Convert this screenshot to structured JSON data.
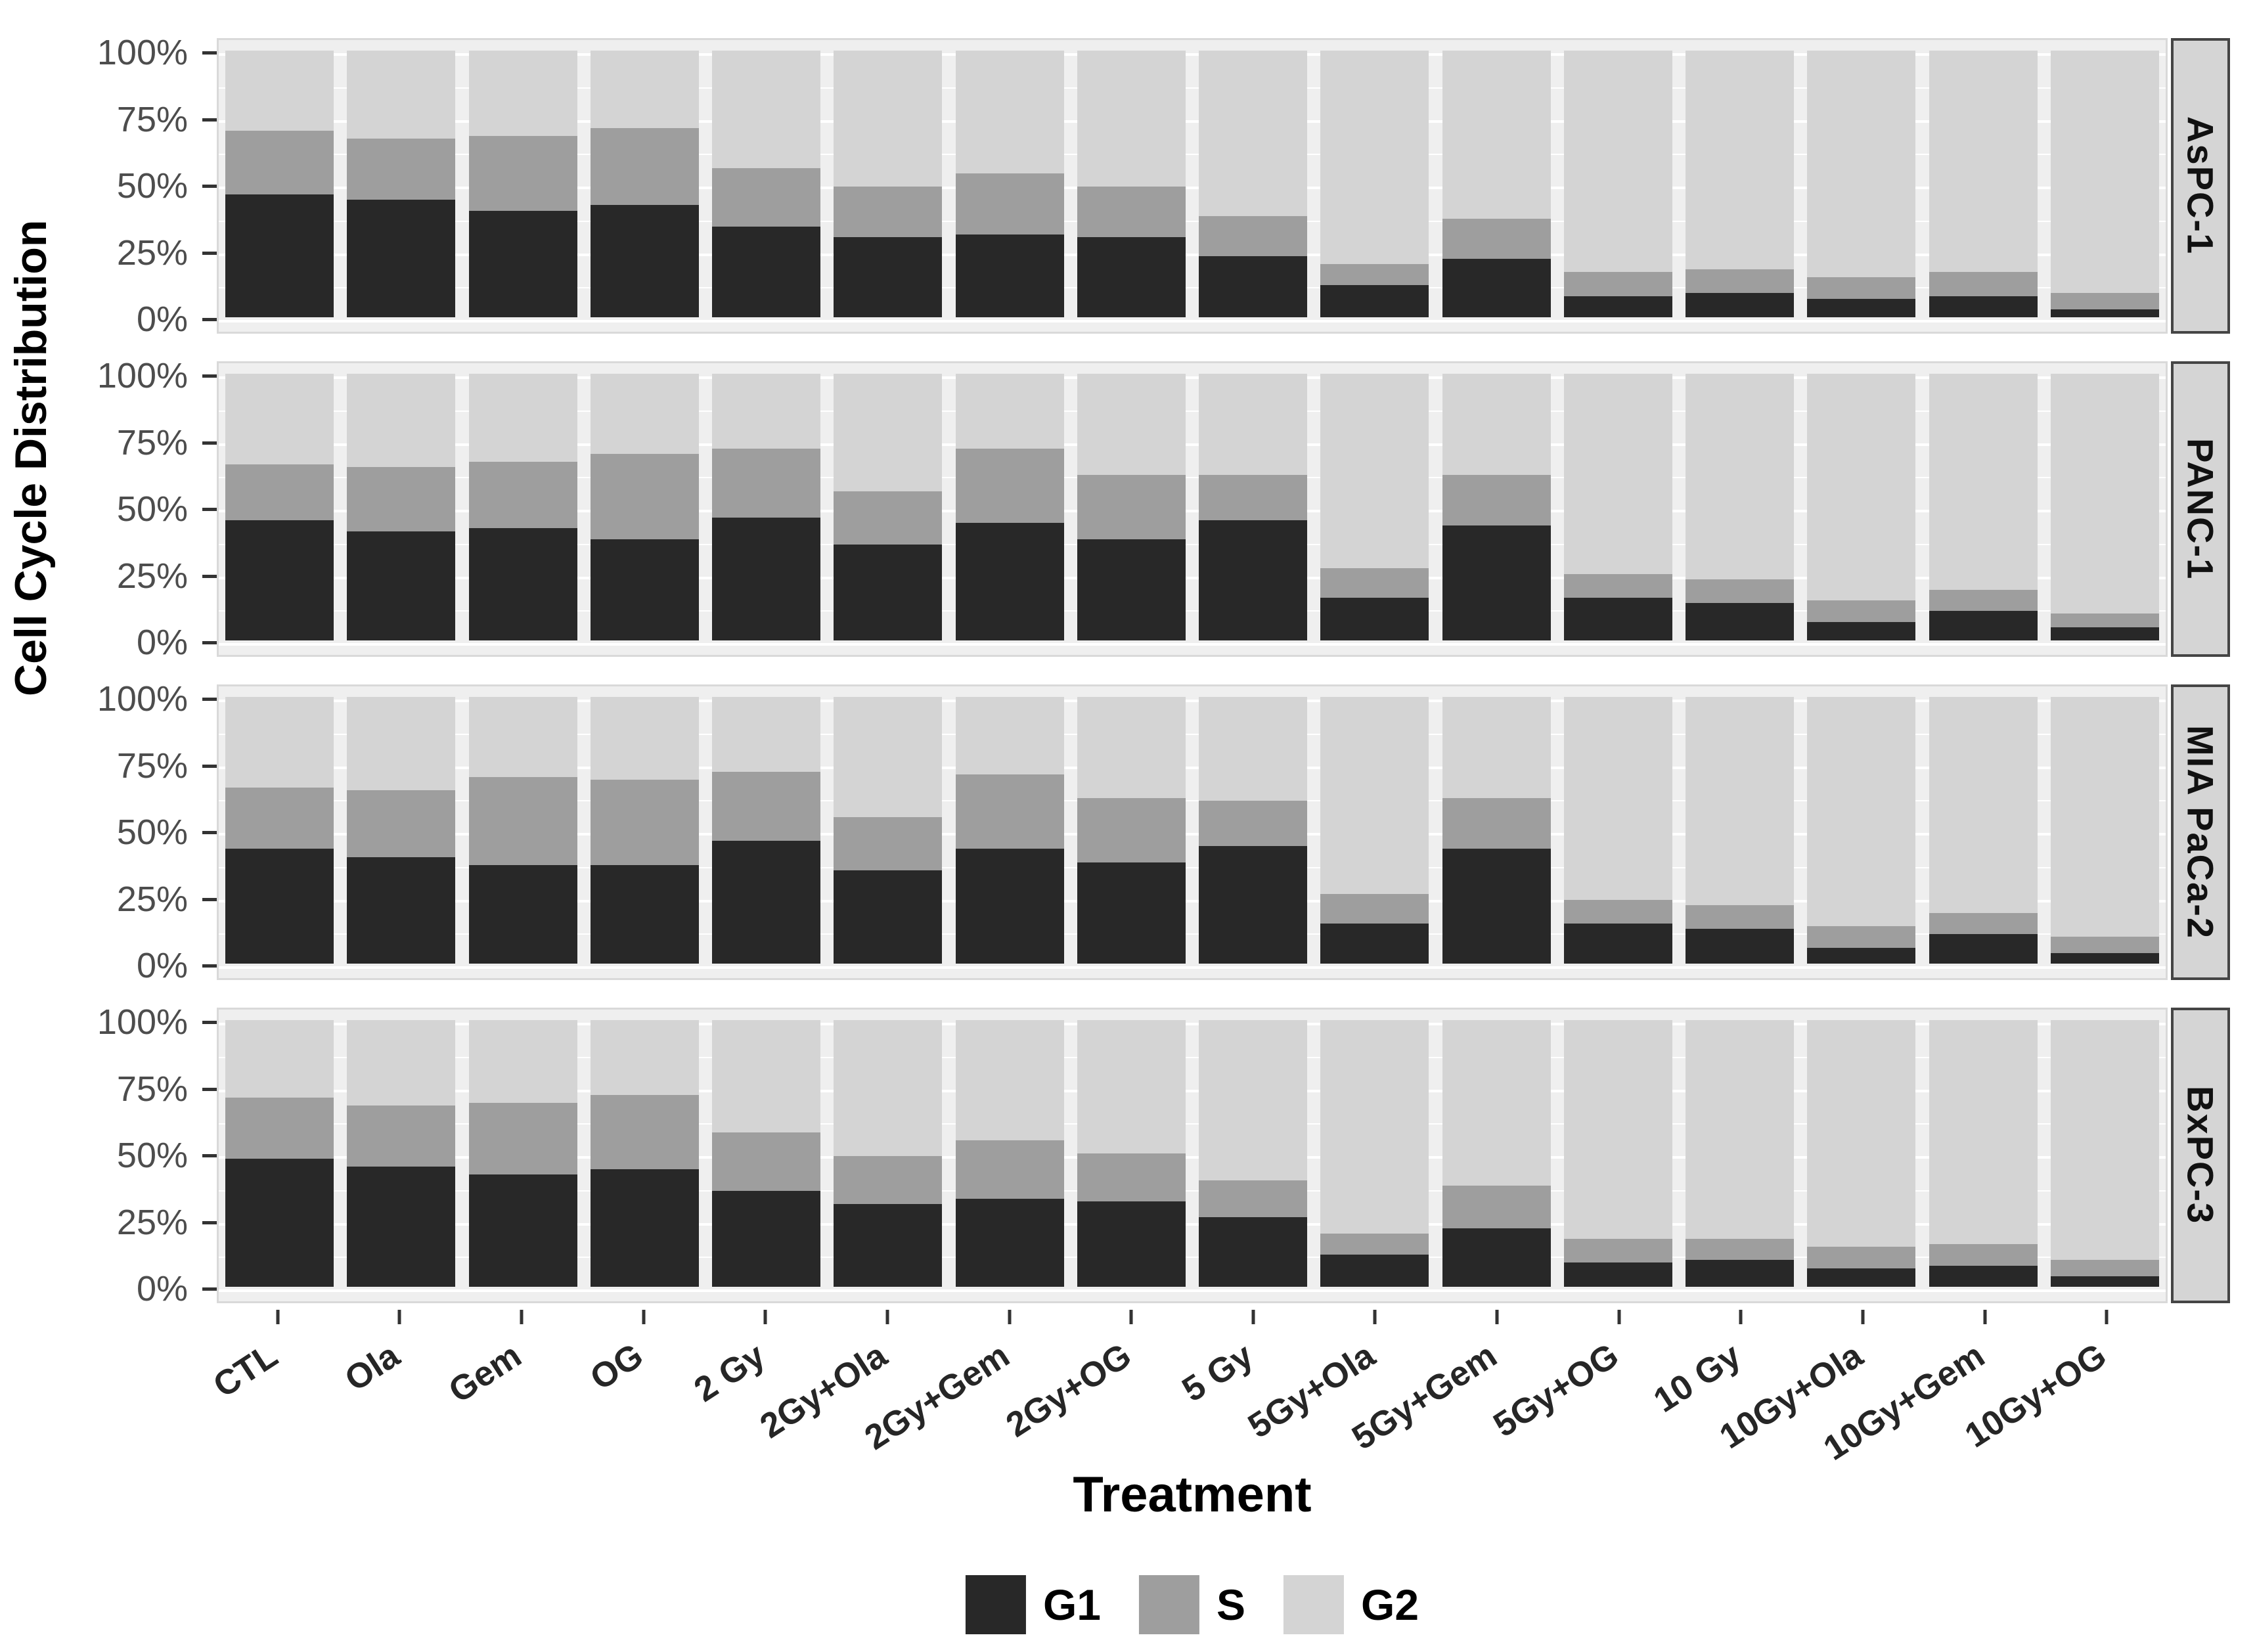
{
  "figure": {
    "y_axis_title": "Cell Cycle Distribution",
    "x_axis_title": "Treatment",
    "y_ticks": [
      "100%",
      "75%",
      "50%",
      "25%",
      "0%"
    ],
    "colors": {
      "G1": "#282828",
      "S": "#9e9e9e",
      "G2": "#d4d4d4",
      "panel_bg": "#efefef",
      "panel_border": "#d9d9d9",
      "grid": "#ffffff",
      "strip_bg": "#d5d5d5",
      "strip_border": "#454545",
      "tick_mark": "#333333",
      "tick_label": "#4d4d4d",
      "axis_label": "#262626"
    }
  },
  "chart_data": {
    "type": "bar",
    "stacked": true,
    "percent": true,
    "xlabel": "Treatment",
    "ylabel": "Cell Cycle Distribution",
    "ylim": [
      0,
      100
    ],
    "y_tick_labels": [
      "0%",
      "25%",
      "50%",
      "75%",
      "100%"
    ],
    "grid": "major-and-minor-white",
    "legend": [
      "G1",
      "S",
      "G2"
    ],
    "legend_position": "bottom",
    "facet_layout": "rows-right-strips",
    "categories": [
      "CTL",
      "Ola",
      "Gem",
      "OG",
      "2 Gy",
      "2Gy+Ola",
      "2Gy+Gem",
      "2Gy+OG",
      "5 Gy",
      "5Gy+Ola",
      "5Gy+Gem",
      "5Gy+OG",
      "10 Gy",
      "10Gy+Ola",
      "10Gy+Gem",
      "10Gy+OG"
    ],
    "facets": [
      {
        "name": "AsPC-1",
        "series": [
          {
            "name": "G1",
            "values": [
              46,
              44,
              40,
              42,
              34,
              30,
              31,
              30,
              23,
              12,
              22,
              8,
              9,
              7,
              8,
              3
            ]
          },
          {
            "name": "S",
            "values": [
              24,
              23,
              28,
              29,
              22,
              19,
              23,
              19,
              15,
              8,
              15,
              9,
              9,
              8,
              9,
              6
            ]
          },
          {
            "name": "G2",
            "values": [
              30,
              33,
              32,
              29,
              44,
              51,
              46,
              51,
              62,
              80,
              63,
              83,
              82,
              85,
              83,
              91
            ]
          }
        ]
      },
      {
        "name": "PANC-1",
        "series": [
          {
            "name": "G1",
            "values": [
              45,
              41,
              42,
              38,
              46,
              36,
              44,
              38,
              45,
              16,
              43,
              16,
              14,
              7,
              11,
              5
            ]
          },
          {
            "name": "S",
            "values": [
              21,
              24,
              25,
              32,
              26,
              20,
              28,
              24,
              17,
              11,
              19,
              9,
              9,
              8,
              8,
              5
            ]
          },
          {
            "name": "G2",
            "values": [
              34,
              35,
              33,
              30,
              28,
              44,
              28,
              38,
              38,
              73,
              38,
              75,
              77,
              85,
              81,
              90
            ]
          }
        ]
      },
      {
        "name": "MIA PaCa-2",
        "series": [
          {
            "name": "G1",
            "values": [
              43,
              40,
              37,
              37,
              46,
              35,
              43,
              38,
              44,
              15,
              43,
              15,
              13,
              6,
              11,
              4
            ]
          },
          {
            "name": "S",
            "values": [
              23,
              25,
              33,
              32,
              26,
              20,
              28,
              24,
              17,
              11,
              19,
              9,
              9,
              8,
              8,
              6
            ]
          },
          {
            "name": "G2",
            "values": [
              34,
              35,
              30,
              31,
              28,
              45,
              29,
              38,
              39,
              74,
              38,
              76,
              78,
              86,
              81,
              90
            ]
          }
        ]
      },
      {
        "name": "BxPC-3",
        "series": [
          {
            "name": "G1",
            "values": [
              48,
              45,
              42,
              44,
              36,
              31,
              33,
              32,
              26,
              12,
              22,
              9,
              10,
              7,
              8,
              4
            ]
          },
          {
            "name": "S",
            "values": [
              23,
              23,
              27,
              28,
              22,
              18,
              22,
              18,
              14,
              8,
              16,
              9,
              8,
              8,
              8,
              6
            ]
          },
          {
            "name": "G2",
            "values": [
              29,
              32,
              31,
              28,
              42,
              51,
              45,
              50,
              60,
              80,
              62,
              82,
              82,
              85,
              84,
              90
            ]
          }
        ]
      }
    ]
  }
}
